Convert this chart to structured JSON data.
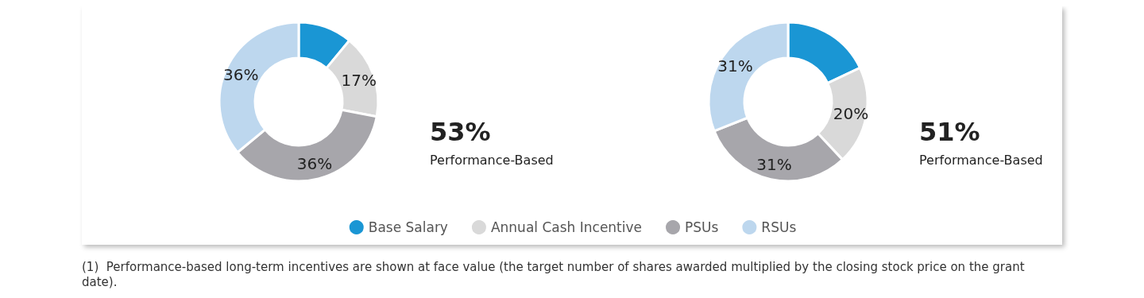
{
  "chart_data": {
    "type": "donut",
    "categories": [
      "Base Salary",
      "Annual Cash Incentive",
      "PSUs",
      "RSUs"
    ],
    "colors": [
      "#1a96d4",
      "#d9d9d9",
      "#a7a6ab",
      "#bdd7ee"
    ],
    "series": [
      {
        "values": [
          11,
          17,
          36,
          36
        ],
        "value_labels": [
          null,
          "17%",
          "36%",
          "36%"
        ]
      },
      {
        "values": [
          18,
          20,
          31,
          31
        ],
        "value_labels": [
          null,
          "20%",
          "31%",
          "31%"
        ]
      }
    ],
    "annotations": [
      "53%",
      "Performance-Based",
      "51%",
      "Performance-Based",
      "(1)  Performance-based long-term incentives are shown at face value (the target number of shares awarded multiplied by the closing stock price on the grant date)."
    ],
    "legend": "bottom"
  }
}
